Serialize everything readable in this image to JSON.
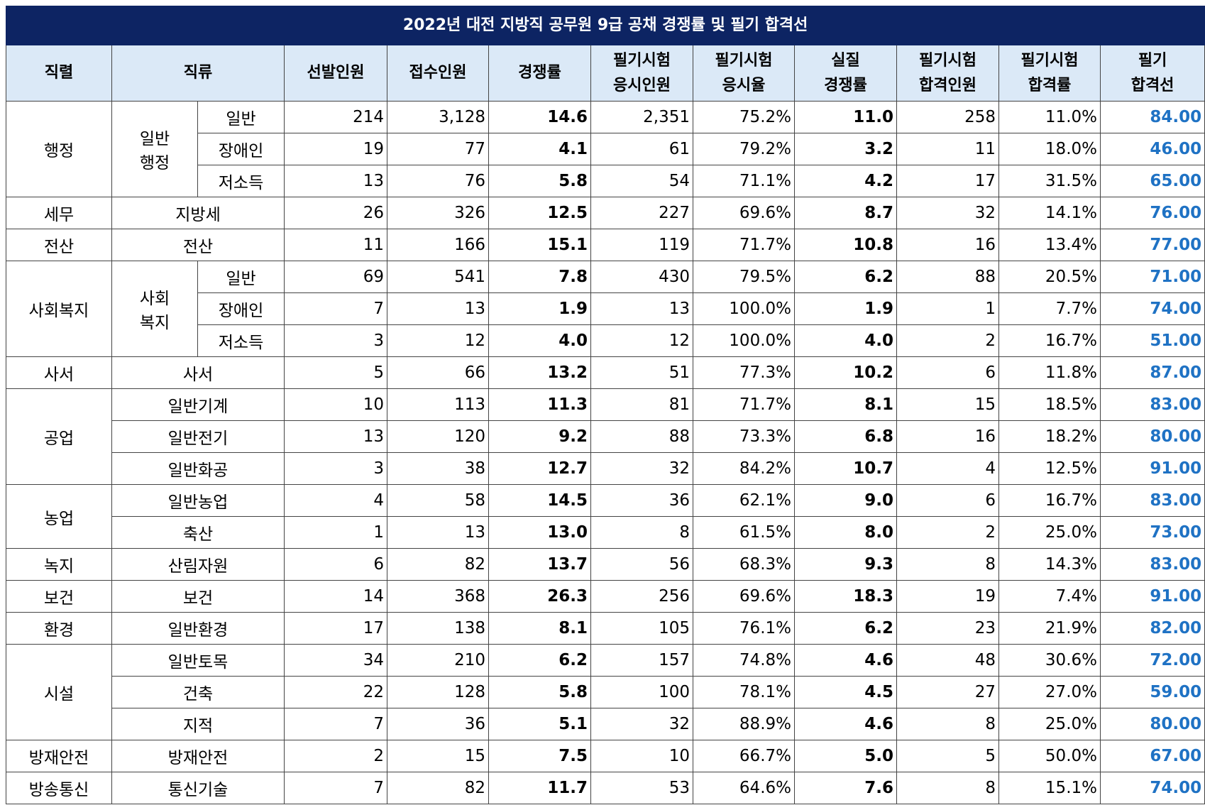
{
  "title": "2022년 대전 지방직 공무원 9급 공채 경쟁률 및 필기 합격선",
  "headers": {
    "jikryeol": "직렬",
    "jikryu": "직류",
    "seonbal": "선발인원",
    "jeopsu": "접수인원",
    "gyeongjaeng": "경쟁률",
    "eungsi_1": "필기시험",
    "eungsi_2": "응시인원",
    "eungsiyul_1": "필기시험",
    "eungsiyul_2": "응시율",
    "silgyeong_1": "실질",
    "silgyeong_2": "경쟁률",
    "habgyeokin_1": "필기시험",
    "habgyeokin_2": "합격인원",
    "habgyeokyul_1": "필기시험",
    "habgyeokyul_2": "합격률",
    "habgyeokseon_1": "필기",
    "habgyeokseon_2": "합격선"
  },
  "groups": {
    "haengjeong": {
      "name": "행정",
      "sub_line1": "일반",
      "sub_line2": "행정"
    },
    "semu": {
      "name": "세무"
    },
    "jeonsan": {
      "name": "전산"
    },
    "sahoebokji": {
      "name": "사회복지",
      "sub_line1": "사회",
      "sub_line2": "복지"
    },
    "saseo": {
      "name": "사서"
    },
    "gongeop": {
      "name": "공업"
    },
    "nongeop": {
      "name": "농업"
    },
    "nokji": {
      "name": "녹지"
    },
    "bogeon": {
      "name": "보건"
    },
    "hwangyeong": {
      "name": "환경"
    },
    "siseol": {
      "name": "시설"
    },
    "bangjae": {
      "name": "방재안전"
    },
    "bangsong": {
      "name": "방송통신"
    }
  },
  "rows": [
    {
      "sub": "일반",
      "seonbal": "214",
      "jeopsu": "3,128",
      "ratio": "14.6",
      "eungsi": "2,351",
      "eungsiyul": "75.2%",
      "real_ratio": "11.0",
      "pass_count": "258",
      "pass_rate": "11.0%",
      "cutoff": "84.00"
    },
    {
      "sub": "장애인",
      "seonbal": "19",
      "jeopsu": "77",
      "ratio": "4.1",
      "eungsi": "61",
      "eungsiyul": "79.2%",
      "real_ratio": "3.2",
      "pass_count": "11",
      "pass_rate": "18.0%",
      "cutoff": "46.00"
    },
    {
      "sub": "저소득",
      "seonbal": "13",
      "jeopsu": "76",
      "ratio": "5.8",
      "eungsi": "54",
      "eungsiyul": "71.1%",
      "real_ratio": "4.2",
      "pass_count": "17",
      "pass_rate": "31.5%",
      "cutoff": "65.00"
    },
    {
      "sub": "지방세",
      "seonbal": "26",
      "jeopsu": "326",
      "ratio": "12.5",
      "eungsi": "227",
      "eungsiyul": "69.6%",
      "real_ratio": "8.7",
      "pass_count": "32",
      "pass_rate": "14.1%",
      "cutoff": "76.00"
    },
    {
      "sub": "전산",
      "seonbal": "11",
      "jeopsu": "166",
      "ratio": "15.1",
      "eungsi": "119",
      "eungsiyul": "71.7%",
      "real_ratio": "10.8",
      "pass_count": "16",
      "pass_rate": "13.4%",
      "cutoff": "77.00"
    },
    {
      "sub": "일반",
      "seonbal": "69",
      "jeopsu": "541",
      "ratio": "7.8",
      "eungsi": "430",
      "eungsiyul": "79.5%",
      "real_ratio": "6.2",
      "pass_count": "88",
      "pass_rate": "20.5%",
      "cutoff": "71.00"
    },
    {
      "sub": "장애인",
      "seonbal": "7",
      "jeopsu": "13",
      "ratio": "1.9",
      "eungsi": "13",
      "eungsiyul": "100.0%",
      "real_ratio": "1.9",
      "pass_count": "1",
      "pass_rate": "7.7%",
      "cutoff": "74.00"
    },
    {
      "sub": "저소득",
      "seonbal": "3",
      "jeopsu": "12",
      "ratio": "4.0",
      "eungsi": "12",
      "eungsiyul": "100.0%",
      "real_ratio": "4.0",
      "pass_count": "2",
      "pass_rate": "16.7%",
      "cutoff": "51.00"
    },
    {
      "sub": "사서",
      "seonbal": "5",
      "jeopsu": "66",
      "ratio": "13.2",
      "eungsi": "51",
      "eungsiyul": "77.3%",
      "real_ratio": "10.2",
      "pass_count": "6",
      "pass_rate": "11.8%",
      "cutoff": "87.00"
    },
    {
      "sub": "일반기계",
      "seonbal": "10",
      "jeopsu": "113",
      "ratio": "11.3",
      "eungsi": "81",
      "eungsiyul": "71.7%",
      "real_ratio": "8.1",
      "pass_count": "15",
      "pass_rate": "18.5%",
      "cutoff": "83.00"
    },
    {
      "sub": "일반전기",
      "seonbal": "13",
      "jeopsu": "120",
      "ratio": "9.2",
      "eungsi": "88",
      "eungsiyul": "73.3%",
      "real_ratio": "6.8",
      "pass_count": "16",
      "pass_rate": "18.2%",
      "cutoff": "80.00"
    },
    {
      "sub": "일반화공",
      "seonbal": "3",
      "jeopsu": "38",
      "ratio": "12.7",
      "eungsi": "32",
      "eungsiyul": "84.2%",
      "real_ratio": "10.7",
      "pass_count": "4",
      "pass_rate": "12.5%",
      "cutoff": "91.00"
    },
    {
      "sub": "일반농업",
      "seonbal": "4",
      "jeopsu": "58",
      "ratio": "14.5",
      "eungsi": "36",
      "eungsiyul": "62.1%",
      "real_ratio": "9.0",
      "pass_count": "6",
      "pass_rate": "16.7%",
      "cutoff": "83.00"
    },
    {
      "sub": "축산",
      "seonbal": "1",
      "jeopsu": "13",
      "ratio": "13.0",
      "eungsi": "8",
      "eungsiyul": "61.5%",
      "real_ratio": "8.0",
      "pass_count": "2",
      "pass_rate": "25.0%",
      "cutoff": "73.00"
    },
    {
      "sub": "산림자원",
      "seonbal": "6",
      "jeopsu": "82",
      "ratio": "13.7",
      "eungsi": "56",
      "eungsiyul": "68.3%",
      "real_ratio": "9.3",
      "pass_count": "8",
      "pass_rate": "14.3%",
      "cutoff": "83.00"
    },
    {
      "sub": "보건",
      "seonbal": "14",
      "jeopsu": "368",
      "ratio": "26.3",
      "eungsi": "256",
      "eungsiyul": "69.6%",
      "real_ratio": "18.3",
      "pass_count": "19",
      "pass_rate": "7.4%",
      "cutoff": "91.00"
    },
    {
      "sub": "일반환경",
      "seonbal": "17",
      "jeopsu": "138",
      "ratio": "8.1",
      "eungsi": "105",
      "eungsiyul": "76.1%",
      "real_ratio": "6.2",
      "pass_count": "23",
      "pass_rate": "21.9%",
      "cutoff": "82.00"
    },
    {
      "sub": "일반토목",
      "seonbal": "34",
      "jeopsu": "210",
      "ratio": "6.2",
      "eungsi": "157",
      "eungsiyul": "74.8%",
      "real_ratio": "4.6",
      "pass_count": "48",
      "pass_rate": "30.6%",
      "cutoff": "72.00"
    },
    {
      "sub": "건축",
      "seonbal": "22",
      "jeopsu": "128",
      "ratio": "5.8",
      "eungsi": "100",
      "eungsiyul": "78.1%",
      "real_ratio": "4.5",
      "pass_count": "27",
      "pass_rate": "27.0%",
      "cutoff": "59.00"
    },
    {
      "sub": "지적",
      "seonbal": "7",
      "jeopsu": "36",
      "ratio": "5.1",
      "eungsi": "32",
      "eungsiyul": "88.9%",
      "real_ratio": "4.6",
      "pass_count": "8",
      "pass_rate": "25.0%",
      "cutoff": "80.00"
    },
    {
      "sub": "방재안전",
      "seonbal": "2",
      "jeopsu": "15",
      "ratio": "7.5",
      "eungsi": "10",
      "eungsiyul": "66.7%",
      "real_ratio": "5.0",
      "pass_count": "5",
      "pass_rate": "50.0%",
      "cutoff": "67.00"
    },
    {
      "sub": "통신기술",
      "seonbal": "7",
      "jeopsu": "82",
      "ratio": "11.7",
      "eungsi": "53",
      "eungsiyul": "64.6%",
      "real_ratio": "7.6",
      "pass_count": "8",
      "pass_rate": "15.1%",
      "cutoff": "74.00"
    }
  ],
  "colors": {
    "title_bg": "#0d2463",
    "header_bg": "#dbe9f7",
    "cutoff_text": "#1f72c4"
  }
}
